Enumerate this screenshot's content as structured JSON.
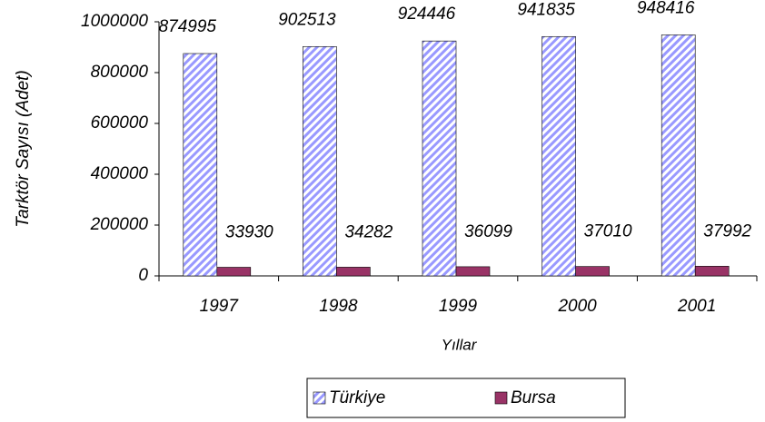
{
  "chart_data": {
    "type": "bar",
    "y_label": "Tarktör Sayısı (Adet)",
    "x_label": "Yıllar",
    "categories": [
      "1997",
      "1998",
      "1999",
      "2000",
      "2001"
    ],
    "series": [
      {
        "name": "Türkiye",
        "color": "#9999ff",
        "pattern": "hatch",
        "values": [
          874995,
          902513,
          924446,
          941835,
          948416
        ]
      },
      {
        "name": "Bursa",
        "color": "#993366",
        "values": [
          33930,
          34282,
          36099,
          37010,
          37992
        ]
      }
    ],
    "ylim": [
      0,
      1000000
    ],
    "yticks": [
      0,
      200000,
      400000,
      600000,
      800000,
      1000000
    ],
    "grid": false,
    "legend": "bottom"
  }
}
